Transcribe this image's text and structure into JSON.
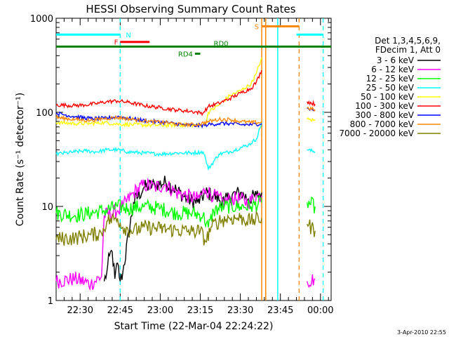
{
  "chart_data": {
    "type": "line",
    "title": "HESSI Observing Summary Count Rates",
    "xlabel": "Start Time (22-Mar-04 22:24:22)",
    "ylabel": "Count Rate (s⁻¹ detector⁻¹)",
    "yscale": "log",
    "ylim": [
      1,
      1000
    ],
    "xlim_minutes": [
      -3,
      100
    ],
    "x_ticks": [
      {
        "m": 6,
        "label": "22:30"
      },
      {
        "m": 21,
        "label": "22:45"
      },
      {
        "m": 36,
        "label": "23:00"
      },
      {
        "m": 51,
        "label": "23:15"
      },
      {
        "m": 66,
        "label": "23:30"
      },
      {
        "m": 81,
        "label": "23:45"
      },
      {
        "m": 96,
        "label": "00:00"
      }
    ],
    "y_ticks": [
      {
        "v": 1,
        "label": "1"
      },
      {
        "v": 10,
        "label": "10"
      },
      {
        "v": 100,
        "label": "100"
      },
      {
        "v": 1000,
        "label": "1000"
      }
    ],
    "legend_header": [
      "Det 1,3,4,5,6,9,",
      "FDecim 1, Att 0"
    ],
    "legend_position": "right",
    "series": [
      {
        "name": "3 - 6 keV",
        "color": "#000000",
        "points": [
          [
            15,
            1.6
          ],
          [
            16,
            2.0
          ],
          [
            17,
            3.0
          ],
          [
            18,
            3.3
          ],
          [
            19,
            1.7
          ],
          [
            20,
            2.5
          ],
          [
            21,
            1.6
          ],
          [
            22,
            2.0
          ],
          [
            26,
            11
          ],
          [
            30,
            16
          ],
          [
            34,
            17
          ],
          [
            38,
            18
          ],
          [
            42,
            15
          ],
          [
            46,
            12
          ],
          [
            50,
            11
          ],
          [
            53,
            14
          ],
          [
            56,
            13
          ],
          [
            60,
            11
          ],
          [
            62,
            13
          ],
          [
            66,
            14
          ],
          [
            69,
            12
          ],
          [
            72,
            13
          ],
          [
            74,
            14
          ]
        ]
      },
      {
        "name": "6 - 12 keV",
        "color": "#ff00ff",
        "points": [
          [
            -3,
            1.6
          ],
          [
            4,
            1.7
          ],
          [
            10,
            1.5
          ],
          [
            14,
            1.8
          ],
          [
            15,
            8
          ],
          [
            20,
            9
          ],
          [
            22,
            10
          ],
          [
            26,
            14
          ],
          [
            30,
            17
          ],
          [
            34,
            16
          ],
          [
            38,
            17
          ],
          [
            42,
            14
          ],
          [
            46,
            13
          ],
          [
            50,
            12
          ],
          [
            53,
            15
          ],
          [
            56,
            13
          ],
          [
            60,
            11
          ],
          [
            62,
            12
          ],
          [
            66,
            12
          ],
          [
            69,
            11
          ],
          [
            72,
            13
          ],
          [
            74,
            13
          ],
          [
            91,
            1.6
          ],
          [
            94,
            1.7
          ]
        ]
      },
      {
        "name": "12 - 25 keV",
        "color": "#00ff00",
        "points": [
          [
            -3,
            8.5
          ],
          [
            4,
            8.0
          ],
          [
            10,
            8.5
          ],
          [
            15,
            9.0
          ],
          [
            20,
            10
          ],
          [
            24,
            9.5
          ],
          [
            30,
            10
          ],
          [
            36,
            9.5
          ],
          [
            42,
            8.5
          ],
          [
            48,
            8.5
          ],
          [
            52,
            8.0
          ],
          [
            54,
            6
          ],
          [
            56,
            9
          ],
          [
            60,
            10
          ],
          [
            66,
            10
          ],
          [
            70,
            10
          ],
          [
            74,
            11
          ],
          [
            91,
            11
          ],
          [
            94,
            10
          ]
        ]
      },
      {
        "name": "25 - 50 keV",
        "color": "#00ffff",
        "points": [
          [
            -3,
            36
          ],
          [
            4,
            38
          ],
          [
            8,
            39
          ],
          [
            12,
            38
          ],
          [
            16,
            40
          ],
          [
            20,
            40
          ],
          [
            24,
            38
          ],
          [
            30,
            37
          ],
          [
            36,
            36
          ],
          [
            42,
            37
          ],
          [
            48,
            37
          ],
          [
            52,
            38
          ],
          [
            53,
            32
          ],
          [
            54,
            25
          ],
          [
            58,
            36
          ],
          [
            62,
            38
          ],
          [
            66,
            42
          ],
          [
            69,
            45
          ],
          [
            72,
            52
          ],
          [
            74,
            78
          ],
          [
            91,
            40
          ],
          [
            94,
            38
          ]
        ]
      },
      {
        "name": "50 - 100 keV",
        "color": "#ffff00",
        "points": [
          [
            -3,
            78
          ],
          [
            4,
            76
          ],
          [
            10,
            76
          ],
          [
            15,
            78
          ],
          [
            20,
            75
          ],
          [
            26,
            74
          ],
          [
            32,
            73
          ],
          [
            38,
            73
          ],
          [
            44,
            73
          ],
          [
            50,
            73
          ],
          [
            53,
            74
          ],
          [
            54,
            100
          ],
          [
            58,
            120
          ],
          [
            62,
            150
          ],
          [
            66,
            170
          ],
          [
            70,
            200
          ],
          [
            72,
            260
          ],
          [
            74,
            380
          ],
          [
            91,
            84
          ],
          [
            94,
            82
          ]
        ]
      },
      {
        "name": "100 - 300 keV",
        "color": "#ff0000",
        "points": [
          [
            -3,
            120
          ],
          [
            4,
            118
          ],
          [
            8,
            120
          ],
          [
            12,
            124
          ],
          [
            16,
            130
          ],
          [
            20,
            132
          ],
          [
            24,
            128
          ],
          [
            30,
            118
          ],
          [
            36,
            112
          ],
          [
            42,
            106
          ],
          [
            48,
            102
          ],
          [
            52,
            98
          ],
          [
            54,
            115
          ],
          [
            58,
            125
          ],
          [
            62,
            140
          ],
          [
            66,
            160
          ],
          [
            70,
            180
          ],
          [
            72,
            210
          ],
          [
            74,
            280
          ],
          [
            91,
            130
          ],
          [
            94,
            122
          ]
        ]
      },
      {
        "name": "300 - 800 keV",
        "color": "#0000ff",
        "points": [
          [
            -3,
            98
          ],
          [
            4,
            90
          ],
          [
            10,
            86
          ],
          [
            15,
            86
          ],
          [
            20,
            90
          ],
          [
            26,
            85
          ],
          [
            32,
            80
          ],
          [
            38,
            78
          ],
          [
            44,
            74
          ],
          [
            50,
            72
          ],
          [
            54,
            74
          ],
          [
            58,
            76
          ],
          [
            62,
            76
          ],
          [
            66,
            74
          ],
          [
            70,
            74
          ],
          [
            74,
            76
          ],
          [
            91,
            110
          ],
          [
            94,
            106
          ]
        ]
      },
      {
        "name": "800 - 7000 keV",
        "color": "#ff8800",
        "points": [
          [
            -3,
            88
          ],
          [
            4,
            84
          ],
          [
            10,
            82
          ],
          [
            15,
            86
          ],
          [
            20,
            88
          ],
          [
            26,
            84
          ],
          [
            32,
            80
          ],
          [
            38,
            78
          ],
          [
            44,
            74
          ],
          [
            50,
            74
          ],
          [
            54,
            80
          ],
          [
            58,
            84
          ],
          [
            62,
            84
          ],
          [
            66,
            80
          ],
          [
            70,
            78
          ],
          [
            74,
            78
          ],
          [
            91,
            112
          ],
          [
            94,
            106
          ]
        ]
      },
      {
        "name": "7000 - 20000 keV",
        "color": "#808000",
        "points": [
          [
            -3,
            4.5
          ],
          [
            4,
            4.6
          ],
          [
            10,
            5.0
          ],
          [
            14,
            5.2
          ],
          [
            16,
            7
          ],
          [
            20,
            7.5
          ],
          [
            22,
            6
          ],
          [
            26,
            5.5
          ],
          [
            30,
            6
          ],
          [
            36,
            5.8
          ],
          [
            42,
            5.6
          ],
          [
            48,
            5.4
          ],
          [
            51,
            5.5
          ],
          [
            53,
            4.2
          ],
          [
            55,
            6
          ],
          [
            58,
            7
          ],
          [
            62,
            7.5
          ],
          [
            66,
            7.5
          ],
          [
            70,
            7
          ],
          [
            74,
            7.5
          ],
          [
            91,
            6.5
          ],
          [
            94,
            5.5
          ]
        ]
      }
    ],
    "annotations": {
      "segments": [
        {
          "label": "N",
          "from": -3,
          "to": 21,
          "value": 670,
          "color": "#00ffff"
        },
        {
          "label": "",
          "from": 87,
          "to": 97,
          "value": 670,
          "color": "#00ffff"
        },
        {
          "label": "F",
          "from": 21,
          "to": 32,
          "value": 560,
          "color": "#ff0000"
        },
        {
          "label": "S",
          "from": 74,
          "to": 88,
          "value": 820,
          "color": "#ff8800"
        },
        {
          "label": "RD0",
          "from": -3,
          "to": 100,
          "value": 500,
          "color": "#008000"
        },
        {
          "label": "RD4",
          "from": 49,
          "to": 51,
          "value": 420,
          "color": "#008000"
        }
      ],
      "vlines_dashed": [
        {
          "m": 21,
          "color": "#00ffff"
        },
        {
          "m": 97,
          "color": "#00ffff"
        },
        {
          "m": 88,
          "color": "#ff8800"
        }
      ],
      "vlines_solid": [
        {
          "m": 74,
          "color": "#ff8800"
        },
        {
          "m": 75.5,
          "color": "#ff8800"
        },
        {
          "m": 80,
          "color": "#00ffff"
        }
      ]
    },
    "footer": "3-Apr-2010 22:55"
  }
}
